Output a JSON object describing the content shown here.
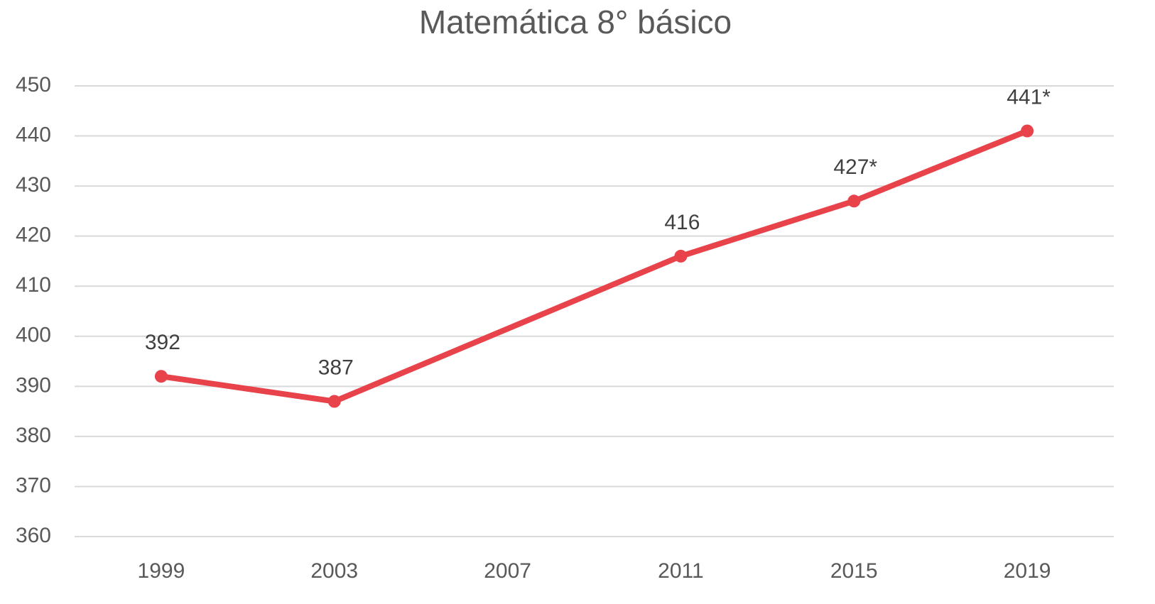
{
  "chart_data": {
    "type": "line",
    "title": "Matemática 8° básico",
    "x": [
      1999,
      2003,
      2011,
      2015,
      2019
    ],
    "series": [
      {
        "name": "Matemática",
        "color": "#e8424a",
        "values": [
          392,
          387,
          416,
          427,
          441
        ],
        "value_labels": [
          "392",
          "387",
          "416",
          "427*",
          "441*"
        ]
      }
    ],
    "xlim": [
      1997,
      2021
    ],
    "xticks": [
      1999,
      2003,
      2007,
      2011,
      2015,
      2019
    ],
    "ylim": [
      360,
      450
    ],
    "yticks": [
      360,
      370,
      380,
      390,
      400,
      410,
      420,
      430,
      440,
      450
    ],
    "grid": true
  }
}
